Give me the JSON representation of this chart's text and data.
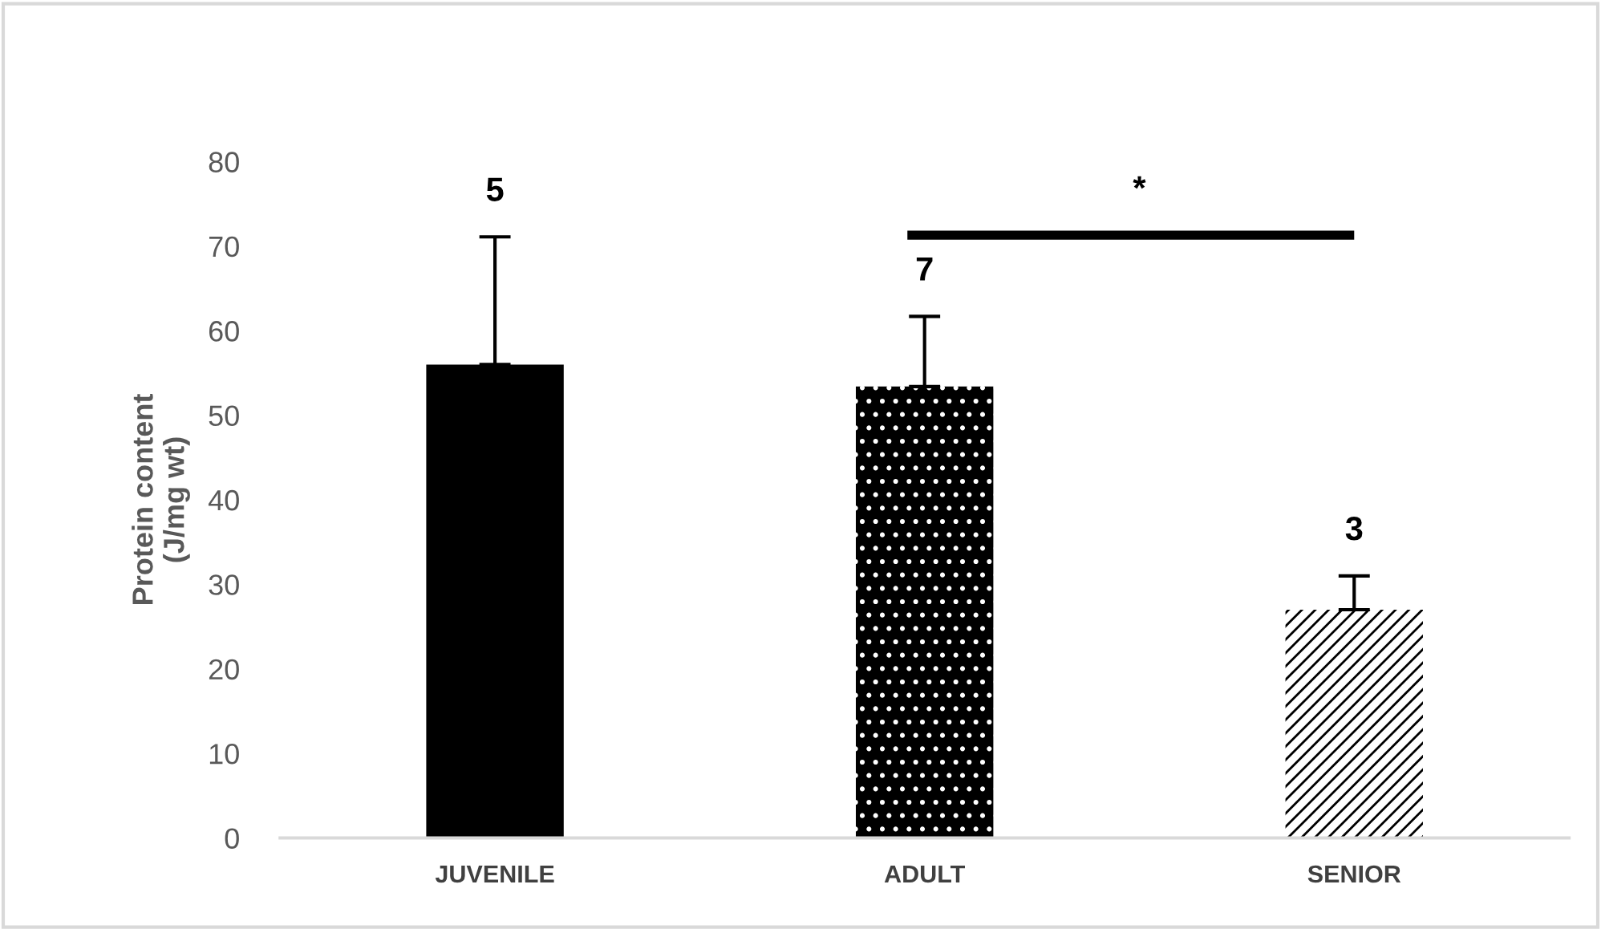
{
  "chart_data": {
    "type": "bar",
    "ylabel": "Protein content\n(J/mg wt)",
    "categories": [
      "JUVENILE",
      "ADULT",
      "SENIOR"
    ],
    "values": [
      56.0,
      53.4,
      27.0
    ],
    "errors": [
      [
        56.0,
        71.1
      ],
      [
        53.4,
        61.7
      ],
      [
        27.0,
        31.0
      ]
    ],
    "colors": [
      "#000000",
      "#000000",
      "#ffffff"
    ],
    "ylim": [
      0,
      80
    ],
    "yticks": [
      0,
      10,
      20,
      30,
      40,
      50,
      60,
      70,
      80
    ],
    "grid": false,
    "annotations": [
      "5",
      "7",
      "3",
      "*"
    ]
  }
}
